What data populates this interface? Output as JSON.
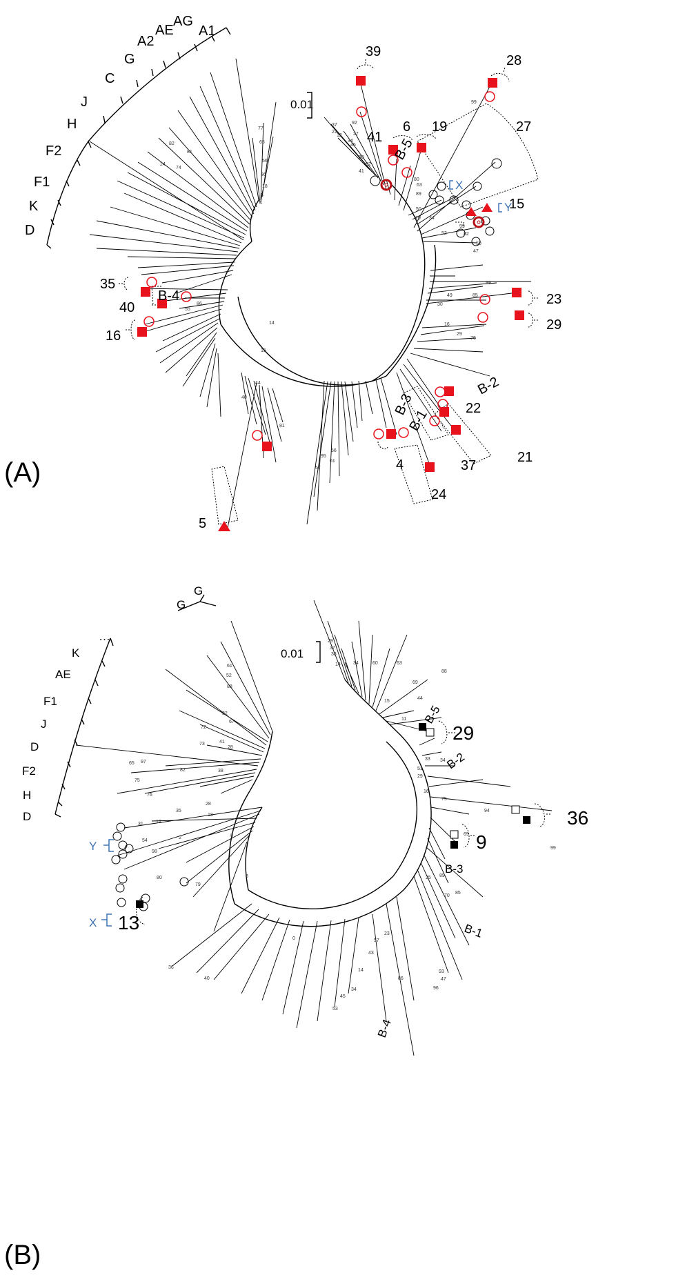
{
  "panels": [
    {
      "label": "(A)",
      "scale_label": "0.01",
      "subtype_labels": [
        "A1",
        "AG",
        "AE",
        "A2",
        "G",
        "C",
        "J",
        "H",
        "F2",
        "F1",
        "K",
        "D"
      ],
      "clusters": [
        {
          "label": "39",
          "marker": "filled-square"
        },
        {
          "label": "28",
          "marker": "filled-square"
        },
        {
          "label": "6",
          "marker": "filled-square"
        },
        {
          "label": "19",
          "marker": "filled-square"
        },
        {
          "label": "27",
          "marker": "open-circle"
        },
        {
          "label": "41",
          "marker": "bullseye"
        },
        {
          "label": "15",
          "marker": "filled-triangle"
        },
        {
          "label": "23",
          "marker": "filled-square"
        },
        {
          "label": "29",
          "marker": "filled-square"
        },
        {
          "label": "22",
          "marker": "filled-square"
        },
        {
          "label": "37",
          "marker": "filled-square"
        },
        {
          "label": "21",
          "marker": "filled-square"
        },
        {
          "label": "24",
          "marker": "filled-square"
        },
        {
          "label": "4",
          "marker": "filled-square"
        },
        {
          "label": "5",
          "marker": "filled-triangle"
        },
        {
          "label": "35",
          "marker": "filled-square"
        },
        {
          "label": "40",
          "marker": "filled-square"
        },
        {
          "label": "16",
          "marker": "filled-square"
        }
      ],
      "group_labels": [
        "B-5",
        "B-4",
        "B-3",
        "B-1",
        "B-2"
      ],
      "bracket_labels": [
        "X",
        "Y"
      ]
    },
    {
      "label": "(B)",
      "scale_label": "0.01",
      "subtype_labels": [
        "G",
        "G",
        "…",
        "K",
        "AE",
        "F1",
        "J",
        "D",
        "F2",
        "H",
        "D"
      ],
      "clusters": [
        {
          "label": "29",
          "marker": "black-square"
        },
        {
          "label": "36",
          "marker": "black-square"
        },
        {
          "label": "9",
          "marker": "black-square"
        },
        {
          "label": "13",
          "marker": "black-square"
        }
      ],
      "group_labels": [
        "B-5",
        "B-2",
        "B-3",
        "B-1",
        "B-4"
      ],
      "bracket_labels": [
        "Y",
        "X"
      ]
    }
  ],
  "bootstrap_values": {
    "panel_a": [
      "77",
      "65",
      "56",
      "36",
      "18",
      "6",
      "4",
      "24",
      "82",
      "74",
      "81",
      "37",
      "21",
      "12",
      "34",
      "45",
      "27",
      "92",
      "82",
      "30",
      "41",
      "99",
      "80",
      "63",
      "89",
      "50",
      "20",
      "34",
      "52",
      "99",
      "49",
      "85",
      "30",
      "29",
      "76",
      "86",
      "55",
      "57",
      "95",
      "56",
      "61",
      "81",
      "44",
      "40",
      "15",
      "14",
      "99",
      "82",
      "50",
      "47",
      "16"
    ],
    "panel_b": [
      "61",
      "52",
      "88",
      "32",
      "67",
      "72",
      "73",
      "41",
      "28",
      "38",
      "65",
      "97",
      "75",
      "76",
      "82",
      "35",
      "28",
      "18",
      "8",
      "3",
      "0",
      "29",
      "37",
      "38",
      "14",
      "34",
      "60",
      "63",
      "88",
      "69",
      "44",
      "15",
      "11",
      "33",
      "34",
      "51",
      "29",
      "16",
      "75",
      "94",
      "69",
      "99",
      "89",
      "25",
      "70",
      "85",
      "36",
      "40",
      "53",
      "45",
      "34",
      "86",
      "93",
      "47",
      "96",
      "57",
      "43",
      "23",
      "14",
      "80",
      "79",
      "98",
      "54",
      "31",
      "12",
      "2"
    ]
  }
}
